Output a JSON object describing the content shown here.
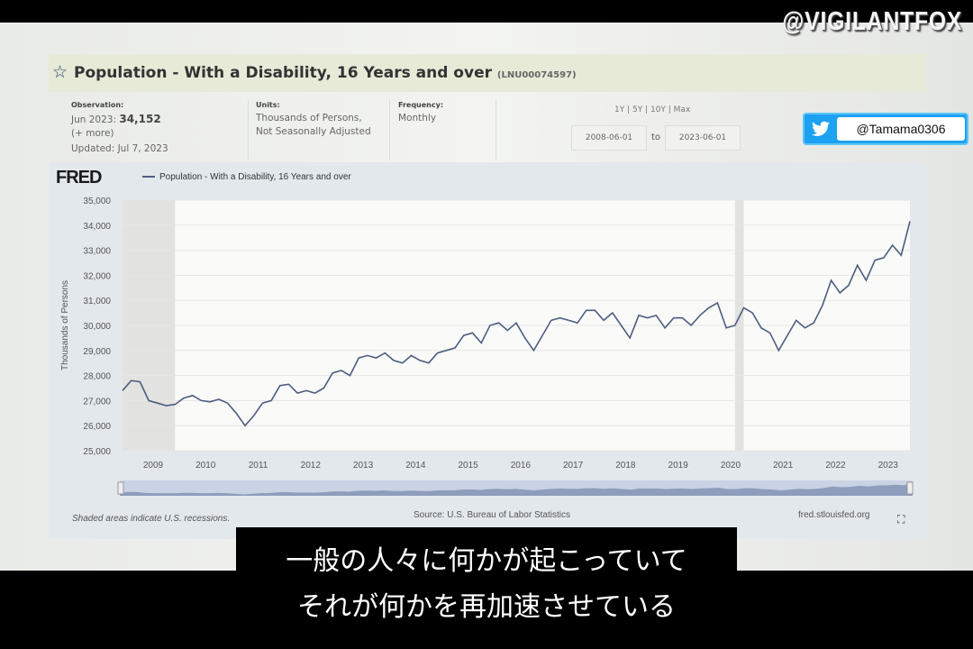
{
  "header": {
    "title": "Population - With a Disability, 16 Years and over",
    "series_id": "(LNU00074597)"
  },
  "observation": {
    "label": "Observation:",
    "date": "Jun 2023:",
    "value": "34,152",
    "more": "(+ more)",
    "updated": "Updated: Jul 7, 2023"
  },
  "units": {
    "label": "Units:",
    "line1": "Thousands of Persons,",
    "line2": "Not Seasonally Adjusted"
  },
  "frequency": {
    "label": "Frequency:",
    "value": "Monthly"
  },
  "range": {
    "presets": "1Y | 5Y | 10Y | Max",
    "start": "2008-06-01",
    "to": "to",
    "end": "2023-06-01"
  },
  "brand": {
    "logo": "FRED",
    "watermark": "@VIGILANTFOX",
    "twitter_handle": "@Tamama0306",
    "twitter_color": "#1da1f2"
  },
  "footer": {
    "note": "Shaded areas indicate U.S. recessions.",
    "source": "Source: U.S. Bureau of Labor Statistics",
    "site": "fred.stlouisfed.org"
  },
  "subtitles": {
    "line1": "一般の人々に何かが起こっていて",
    "line2": "それが何かを再加速させている"
  },
  "chart_data": {
    "type": "line",
    "title": "",
    "legend": [
      "Population - With a Disability, 16 Years and over"
    ],
    "legend_placement": "top-left",
    "ylabel": "Thousands of Persons",
    "ylim": [
      25000,
      35000
    ],
    "yticks": [
      "25,000",
      "26,000",
      "27,000",
      "28,000",
      "29,000",
      "30,000",
      "31,000",
      "32,000",
      "33,000",
      "34,000",
      "35,000"
    ],
    "xticks": [
      "2009",
      "2010",
      "2011",
      "2012",
      "2013",
      "2014",
      "2015",
      "2016",
      "2017",
      "2018",
      "2019",
      "2020",
      "2021",
      "2022",
      "2023"
    ],
    "xlim": [
      "2008-06",
      "2023-06"
    ],
    "grid": "horizontal",
    "line_color": "#4d5e80",
    "recessions": [
      [
        "2008-06",
        "2009-06"
      ],
      [
        "2020-02",
        "2020-04"
      ]
    ],
    "series": [
      {
        "x": [
          "2008-06",
          "2008-08",
          "2008-10",
          "2008-12",
          "2009-02",
          "2009-04",
          "2009-06",
          "2009-08",
          "2009-10",
          "2009-12",
          "2010-02",
          "2010-04",
          "2010-06",
          "2010-08",
          "2010-10",
          "2010-12",
          "2011-02",
          "2011-04",
          "2011-06",
          "2011-08",
          "2011-10",
          "2011-12",
          "2012-02",
          "2012-04",
          "2012-06",
          "2012-08",
          "2012-10",
          "2012-12",
          "2013-02",
          "2013-04",
          "2013-06",
          "2013-08",
          "2013-10",
          "2013-12",
          "2014-02",
          "2014-04",
          "2014-06",
          "2014-08",
          "2014-10",
          "2014-12",
          "2015-02",
          "2015-04",
          "2015-06",
          "2015-08",
          "2015-10",
          "2015-12",
          "2016-02",
          "2016-04",
          "2016-06",
          "2016-08",
          "2016-10",
          "2016-12",
          "2017-02",
          "2017-04",
          "2017-06",
          "2017-08",
          "2017-10",
          "2017-12",
          "2018-02",
          "2018-04",
          "2018-06",
          "2018-08",
          "2018-10",
          "2018-12",
          "2019-02",
          "2019-04",
          "2019-06",
          "2019-08",
          "2019-10",
          "2019-12",
          "2020-02",
          "2020-04",
          "2020-06",
          "2020-08",
          "2020-10",
          "2020-12",
          "2021-02",
          "2021-04",
          "2021-06",
          "2021-08",
          "2021-10",
          "2021-12",
          "2022-02",
          "2022-04",
          "2022-06",
          "2022-08",
          "2022-10",
          "2022-12",
          "2023-02",
          "2023-04",
          "2023-06"
        ],
        "y": [
          27400,
          27800,
          27750,
          27000,
          26900,
          26800,
          26850,
          27100,
          27200,
          27000,
          26950,
          27050,
          26900,
          26500,
          26000,
          26400,
          26900,
          27000,
          27600,
          27650,
          27300,
          27400,
          27300,
          27500,
          28100,
          28200,
          28000,
          28700,
          28800,
          28700,
          28900,
          28600,
          28500,
          28800,
          28600,
          28500,
          28900,
          29000,
          29100,
          29600,
          29700,
          29300,
          30000,
          30100,
          29800,
          30100,
          29500,
          29000,
          29600,
          30200,
          30300,
          30200,
          30100,
          30600,
          30600,
          30200,
          30500,
          30000,
          29500,
          30400,
          30300,
          30400,
          29900,
          30300,
          30300,
          30000,
          30400,
          30700,
          30900,
          29900,
          30000,
          30700,
          30500,
          29900,
          29700,
          29000,
          29600,
          30200,
          29900,
          30100,
          30800,
          31800,
          31300,
          31600,
          32400,
          31800,
          32600,
          32700,
          33200,
          32800,
          34152
        ]
      }
    ]
  }
}
